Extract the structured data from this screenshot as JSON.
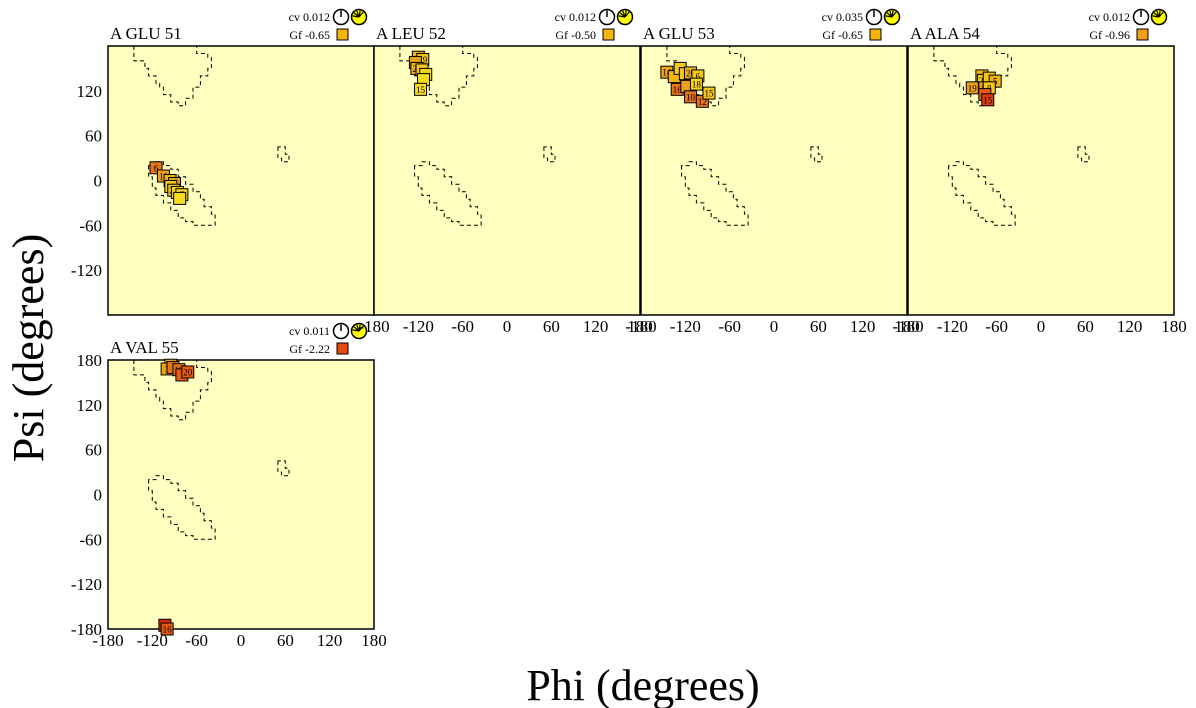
{
  "axes": {
    "xlabel": "Phi (degrees)",
    "ylabel": "Psi (degrees)",
    "xlim": [
      -180,
      180
    ],
    "ylim": [
      -180,
      180
    ],
    "xticks": [
      "-180",
      "-120",
      "-60",
      "0",
      "60",
      "120",
      "180"
    ],
    "yticks": [
      "180",
      "120",
      "60",
      "0",
      "-60",
      "-120",
      "-180"
    ]
  },
  "colors": {
    "plot_background": "#ffffc0",
    "square_border": "#000000",
    "region_outline": "#000000",
    "clock_fill": "#ffff00"
  },
  "chart_data": [
    {
      "type": "scatter",
      "title": "A GLU 51",
      "cv_label": "cv 0.012",
      "gf_label": "Gf -0.65",
      "gf_color": "#f5b40a",
      "x_tick_labels_shown": false,
      "y_tick_labels_shown": true,
      "points": [
        {
          "label": "6",
          "phi": -115,
          "psi": 17,
          "color": "#e8741a"
        },
        {
          "label": "11",
          "phi": -105,
          "psi": 6,
          "color": "#f0a018"
        },
        {
          "label": "",
          "phi": -96,
          "psi": 0,
          "color": "#f0b414"
        },
        {
          "label": "",
          "phi": -90,
          "psi": -4,
          "color": "#e8a016"
        },
        {
          "label": "",
          "phi": -95,
          "psi": -8,
          "color": "#f5c81a"
        },
        {
          "label": "20",
          "phi": -91,
          "psi": -13,
          "color": "#f2c51c"
        },
        {
          "label": "",
          "phi": -86,
          "psi": -16,
          "color": "#f5d21c"
        },
        {
          "label": "7",
          "phi": -80,
          "psi": -19,
          "color": "#f5d41c"
        },
        {
          "label": "",
          "phi": -83,
          "psi": -24,
          "color": "#f5dc20"
        }
      ]
    },
    {
      "type": "scatter",
      "title": "A LEU 52",
      "cv_label": "cv 0.012",
      "gf_label": "Gf -0.50",
      "gf_color": "#f5b40a",
      "x_tick_labels_shown": false,
      "y_tick_labels_shown": false,
      "points": [
        {
          "label": "",
          "phi": -120,
          "psi": 165,
          "color": "#f0b414"
        },
        {
          "label": "19",
          "phi": -114,
          "psi": 162,
          "color": "#f2c51c"
        },
        {
          "label": "",
          "phi": -124,
          "psi": 158,
          "color": "#e8a016"
        },
        {
          "label": "20",
          "phi": -122,
          "psi": 150,
          "color": "#f0b414"
        },
        {
          "label": "",
          "phi": -115,
          "psi": 148,
          "color": "#f5c81a"
        },
        {
          "label": "",
          "phi": -110,
          "psi": 142,
          "color": "#f5d21c"
        },
        {
          "label": "",
          "phi": -113,
          "psi": 135,
          "color": "#f5dc20"
        },
        {
          "label": "15",
          "phi": -117,
          "psi": 122,
          "color": "#f5dc20"
        }
      ]
    },
    {
      "type": "scatter",
      "title": "A GLU 53",
      "cv_label": "cv 0.035",
      "gf_label": "Gf -0.65",
      "gf_color": "#f5b40a",
      "x_tick_labels_shown": false,
      "y_tick_labels_shown": false,
      "points": [
        {
          "label": "14",
          "phi": -145,
          "psi": 145,
          "color": "#f0a018"
        },
        {
          "label": "",
          "phi": -135,
          "psi": 139,
          "color": "#f0b414"
        },
        {
          "label": "",
          "phi": -127,
          "psi": 150,
          "color": "#f5c81a"
        },
        {
          "label": "",
          "phi": -120,
          "psi": 143,
          "color": "#f2c51c"
        },
        {
          "label": "20",
          "phi": -113,
          "psi": 144,
          "color": "#f0b414"
        },
        {
          "label": "6",
          "phi": -103,
          "psi": 140,
          "color": "#f5c81a"
        },
        {
          "label": "16",
          "phi": -131,
          "psi": 122,
          "color": "#e8741a"
        },
        {
          "label": "",
          "phi": -118,
          "psi": 126,
          "color": "#f0a018"
        },
        {
          "label": "18",
          "phi": -105,
          "psi": 129,
          "color": "#f5d21c"
        },
        {
          "label": "10",
          "phi": -113,
          "psi": 112,
          "color": "#e8741a"
        },
        {
          "label": "12",
          "phi": -97,
          "psi": 106,
          "color": "#e8741a"
        },
        {
          "label": "15",
          "phi": -88,
          "psi": 117,
          "color": "#f5c81a"
        }
      ]
    },
    {
      "type": "scatter",
      "title": "A ALA 54",
      "cv_label": "cv 0.012",
      "gf_label": "Gf -0.96",
      "gf_color": "#f0a018",
      "x_tick_labels_shown": true,
      "y_tick_labels_shown": false,
      "points": [
        {
          "label": "",
          "phi": -80,
          "psi": 140,
          "color": "#f0b414"
        },
        {
          "label": "20",
          "phi": -78,
          "psi": 134,
          "color": "#f5c81a"
        },
        {
          "label": "",
          "phi": -70,
          "psi": 137,
          "color": "#f2c51c"
        },
        {
          "label": "5",
          "phi": -62,
          "psi": 133,
          "color": "#f0b414"
        },
        {
          "label": "19",
          "phi": -93,
          "psi": 124,
          "color": "#f0a018"
        },
        {
          "label": "11",
          "phi": -76,
          "psi": 124,
          "color": "#f0a018"
        },
        {
          "label": "8",
          "phi": -70,
          "psi": 124,
          "color": "#f5c81a"
        },
        {
          "label": "",
          "phi": -76,
          "psi": 115,
          "color": "#e85a10"
        },
        {
          "label": "15",
          "phi": -72,
          "psi": 108,
          "color": "#e03a10"
        }
      ]
    },
    {
      "type": "scatter",
      "title": "A VAL 55",
      "cv_label": "cv 0.011",
      "gf_label": "Gf -2.22",
      "gf_color": "#e84a10",
      "x_tick_labels_shown": true,
      "y_tick_labels_shown": true,
      "points": [
        {
          "label": "",
          "phi": -95,
          "psi": 173,
          "color": "#f0a018"
        },
        {
          "label": "3",
          "phi": -100,
          "psi": 168,
          "color": "#f0a018"
        },
        {
          "label": "",
          "phi": -92,
          "psi": 170,
          "color": "#e8741a"
        },
        {
          "label": "19",
          "phi": -84,
          "psi": 167,
          "color": "#e8741a"
        },
        {
          "label": "",
          "phi": -80,
          "psi": 160,
          "color": "#e85a10"
        },
        {
          "label": "20",
          "phi": -72,
          "psi": 164,
          "color": "#e85a10"
        },
        {
          "label": "",
          "phi": -103,
          "psi": -175,
          "color": "#d8280c"
        },
        {
          "label": "16",
          "phi": -100,
          "psi": -180,
          "color": "#e85a10"
        }
      ]
    }
  ],
  "allowed_regions": {
    "beta": [
      [
        -145,
        180
      ],
      [
        -145,
        160
      ],
      [
        -130,
        160
      ],
      [
        -130,
        150
      ],
      [
        -125,
        150
      ],
      [
        -125,
        140
      ],
      [
        -115,
        140
      ],
      [
        -115,
        130
      ],
      [
        -110,
        130
      ],
      [
        -110,
        125
      ],
      [
        -105,
        125
      ],
      [
        -105,
        115
      ],
      [
        -95,
        115
      ],
      [
        -95,
        105
      ],
      [
        -85,
        105
      ],
      [
        -85,
        100
      ],
      [
        -75,
        100
      ],
      [
        -75,
        110
      ],
      [
        -65,
        110
      ],
      [
        -65,
        125
      ],
      [
        -55,
        125
      ],
      [
        -55,
        140
      ],
      [
        -45,
        140
      ],
      [
        -45,
        150
      ],
      [
        -40,
        150
      ],
      [
        -40,
        165
      ],
      [
        -45,
        165
      ],
      [
        -45,
        170
      ],
      [
        -60,
        170
      ],
      [
        -60,
        180
      ]
    ],
    "alpha": [
      [
        -125,
        20
      ],
      [
        -125,
        5
      ],
      [
        -120,
        5
      ],
      [
        -120,
        -10
      ],
      [
        -115,
        -10
      ],
      [
        -115,
        -20
      ],
      [
        -105,
        -20
      ],
      [
        -105,
        -30
      ],
      [
        -95,
        -30
      ],
      [
        -95,
        -40
      ],
      [
        -85,
        -40
      ],
      [
        -85,
        -50
      ],
      [
        -75,
        -50
      ],
      [
        -75,
        -55
      ],
      [
        -65,
        -55
      ],
      [
        -65,
        -60
      ],
      [
        -35,
        -60
      ],
      [
        -35,
        -45
      ],
      [
        -40,
        -45
      ],
      [
        -40,
        -35
      ],
      [
        -50,
        -35
      ],
      [
        -50,
        -25
      ],
      [
        -55,
        -25
      ],
      [
        -55,
        -15
      ],
      [
        -65,
        -15
      ],
      [
        -65,
        -5
      ],
      [
        -75,
        -5
      ],
      [
        -75,
        5
      ],
      [
        -85,
        5
      ],
      [
        -85,
        15
      ],
      [
        -95,
        15
      ],
      [
        -95,
        20
      ],
      [
        -105,
        20
      ],
      [
        -105,
        25
      ],
      [
        -115,
        25
      ],
      [
        -115,
        20
      ]
    ],
    "left": [
      [
        50,
        45
      ],
      [
        50,
        30
      ],
      [
        55,
        30
      ],
      [
        55,
        25
      ],
      [
        65,
        25
      ],
      [
        65,
        35
      ],
      [
        60,
        35
      ],
      [
        60,
        45
      ]
    ]
  }
}
